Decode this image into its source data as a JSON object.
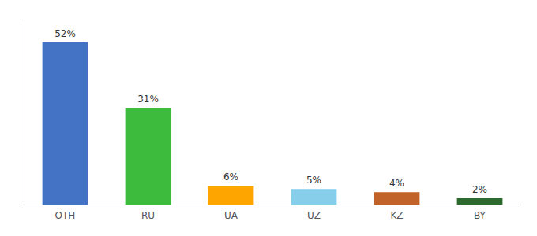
{
  "chart_data": {
    "type": "bar",
    "categories": [
      "OTH",
      "RU",
      "UA",
      "UZ",
      "KZ",
      "BY"
    ],
    "values": [
      52,
      31,
      6,
      5,
      4,
      2
    ],
    "value_labels": [
      "52%",
      "31%",
      "6%",
      "5%",
      "4%",
      "2%"
    ],
    "colors": [
      "#4472C4",
      "#3DBB3D",
      "#FFA500",
      "#87CEEB",
      "#C0622A",
      "#2D6A2D"
    ],
    "ylim": [
      0,
      58
    ],
    "grid": false,
    "data_labels": true,
    "tick_labels": "x"
  }
}
